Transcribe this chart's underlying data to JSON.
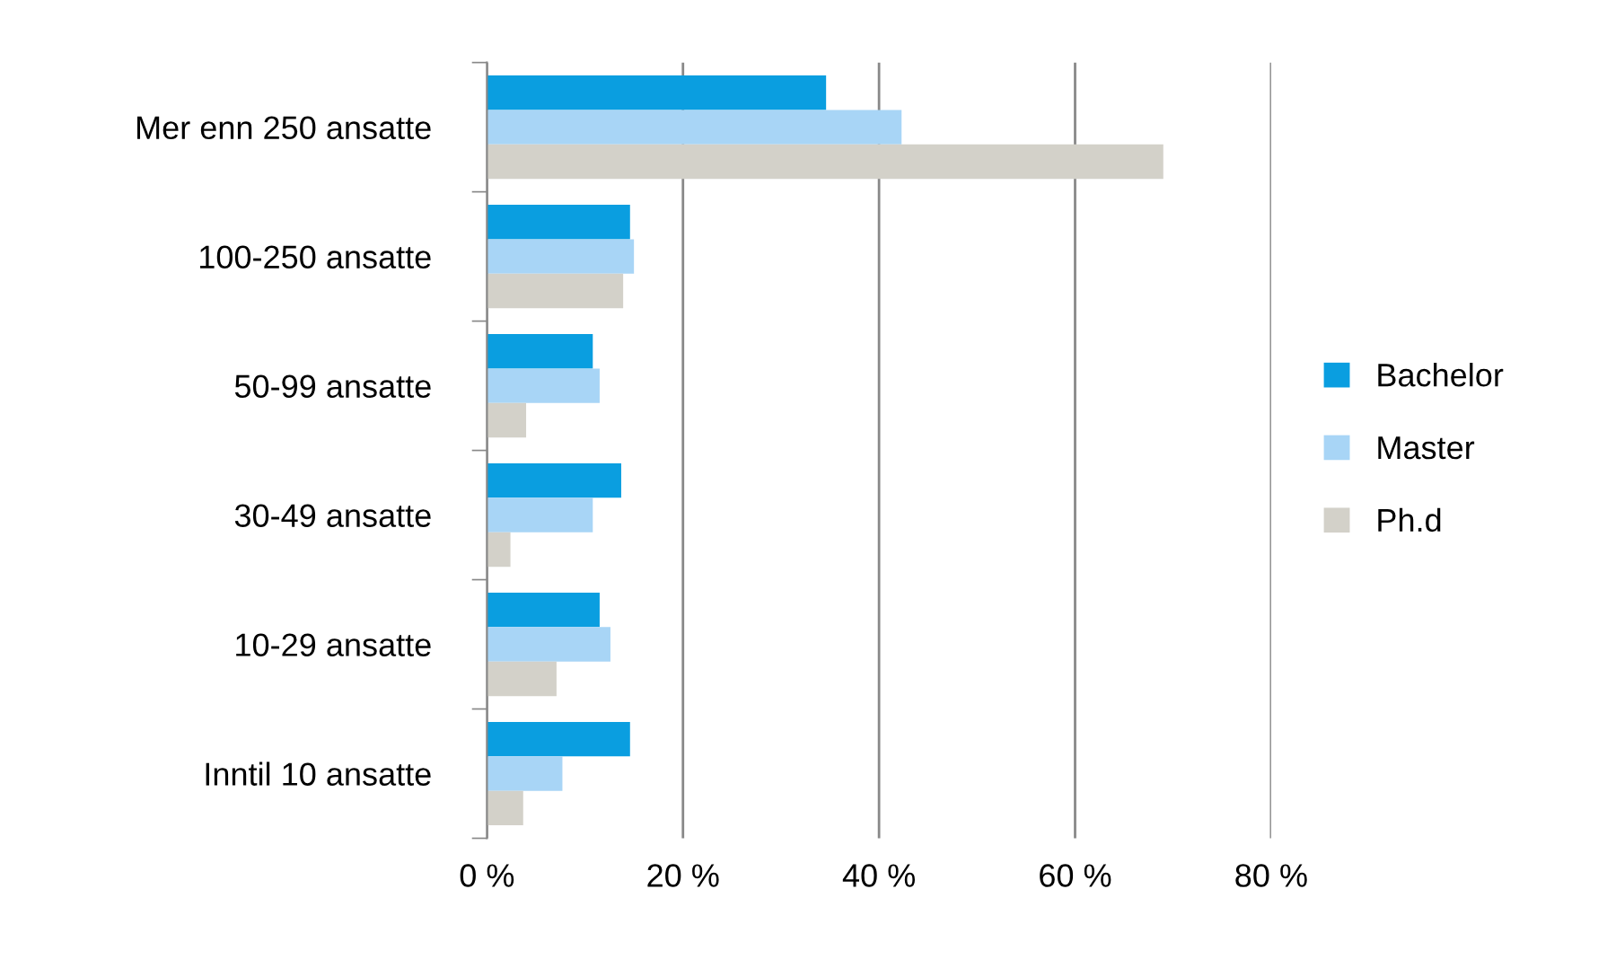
{
  "chart_data": {
    "type": "bar",
    "orientation": "horizontal",
    "categories": [
      "Mer enn 250 ansatte",
      "100-250 ansatte",
      "50-99 ansatte",
      "30-49 ansatte",
      "10-29 ansatte",
      "Inntil 10 ansatte"
    ],
    "series": [
      {
        "name": "Bachelor",
        "color": "#0a9ee0",
        "values": [
          34.6,
          14.6,
          10.8,
          13.7,
          11.5,
          14.6
        ]
      },
      {
        "name": "Master",
        "color": "#a8d5f6",
        "values": [
          42.3,
          15.0,
          11.5,
          10.8,
          12.6,
          7.7
        ]
      },
      {
        "name": "Ph.d",
        "color": "#d3d1c9",
        "values": [
          69.0,
          13.9,
          4.0,
          2.4,
          7.1,
          3.7
        ]
      }
    ],
    "xlim": [
      0,
      80
    ],
    "xticks": [
      {
        "value": 0,
        "label": "0 %"
      },
      {
        "value": 20,
        "label": "20 %"
      },
      {
        "value": 40,
        "label": "40 %"
      },
      {
        "value": 60,
        "label": "60 %"
      },
      {
        "value": 80,
        "label": "80 %"
      }
    ],
    "grid": "x",
    "legend": "right"
  }
}
